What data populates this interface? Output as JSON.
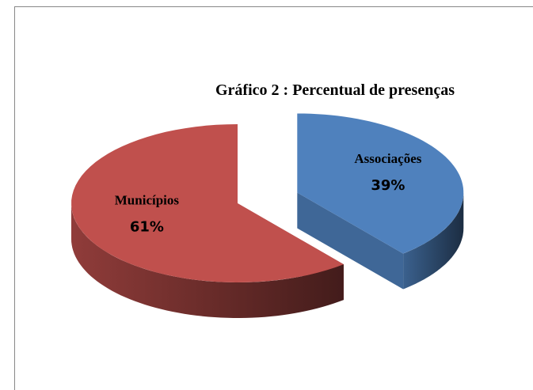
{
  "chart_data": {
    "type": "pie",
    "title": "Gráfico 2 : Percentual de presenças",
    "categories": [
      "Associações",
      "Municípios"
    ],
    "values": [
      39,
      61
    ],
    "value_labels": [
      "39%",
      "61%"
    ],
    "colors": [
      "#4f81bd",
      "#c0504d"
    ],
    "explode": [
      true,
      false
    ]
  }
}
